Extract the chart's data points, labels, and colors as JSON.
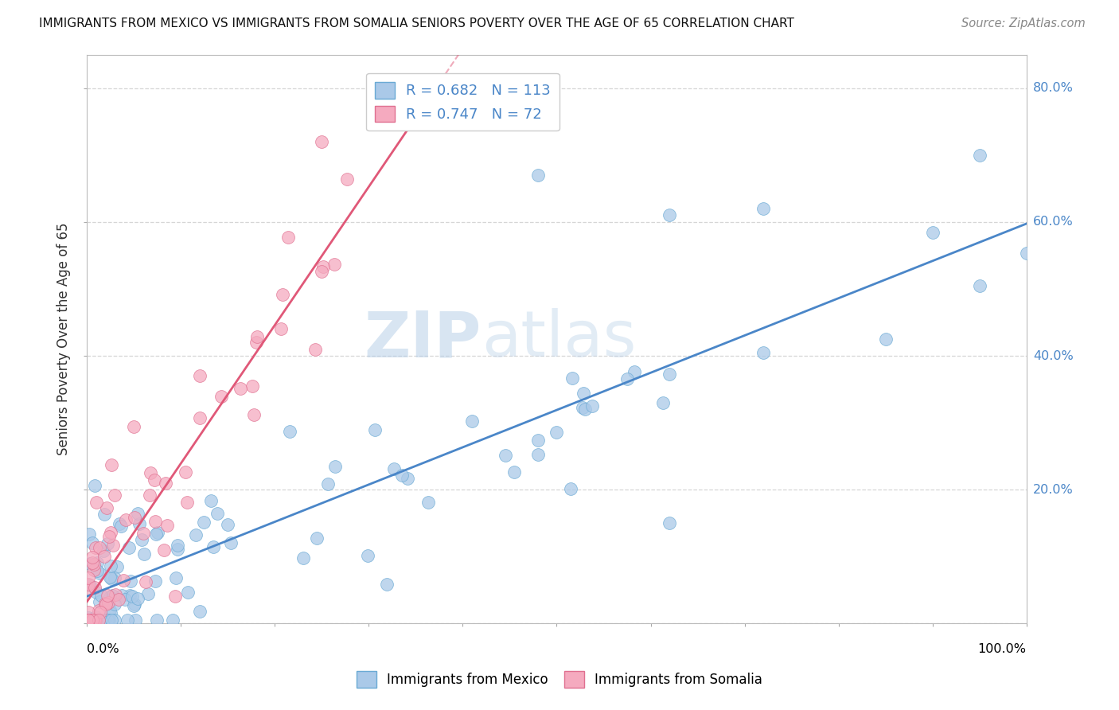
{
  "title": "IMMIGRANTS FROM MEXICO VS IMMIGRANTS FROM SOMALIA SENIORS POVERTY OVER THE AGE OF 65 CORRELATION CHART",
  "source": "Source: ZipAtlas.com",
  "ylabel": "Seniors Poverty Over the Age of 65",
  "xlim": [
    0,
    1.0
  ],
  "ylim": [
    0,
    0.85
  ],
  "watermark_zip": "ZIP",
  "watermark_atlas": "atlas",
  "mexico_color": "#aac9e8",
  "mexico_edge": "#6aaad4",
  "somalia_color": "#f5aabf",
  "somalia_edge": "#e07090",
  "regression_mexico_color": "#4a86c8",
  "regression_somalia_color": "#e05878",
  "R_mexico": 0.682,
  "N_mexico": 113,
  "R_somalia": 0.747,
  "N_somalia": 72,
  "legend_label_mexico": "Immigrants from Mexico",
  "legend_label_somalia": "Immigrants from Somalia",
  "background_color": "#ffffff",
  "grid_color": "#cccccc",
  "tick_label_color": "#4a86c8",
  "legend_R_color": "#4a86c8",
  "legend_N_color": "#e05878"
}
